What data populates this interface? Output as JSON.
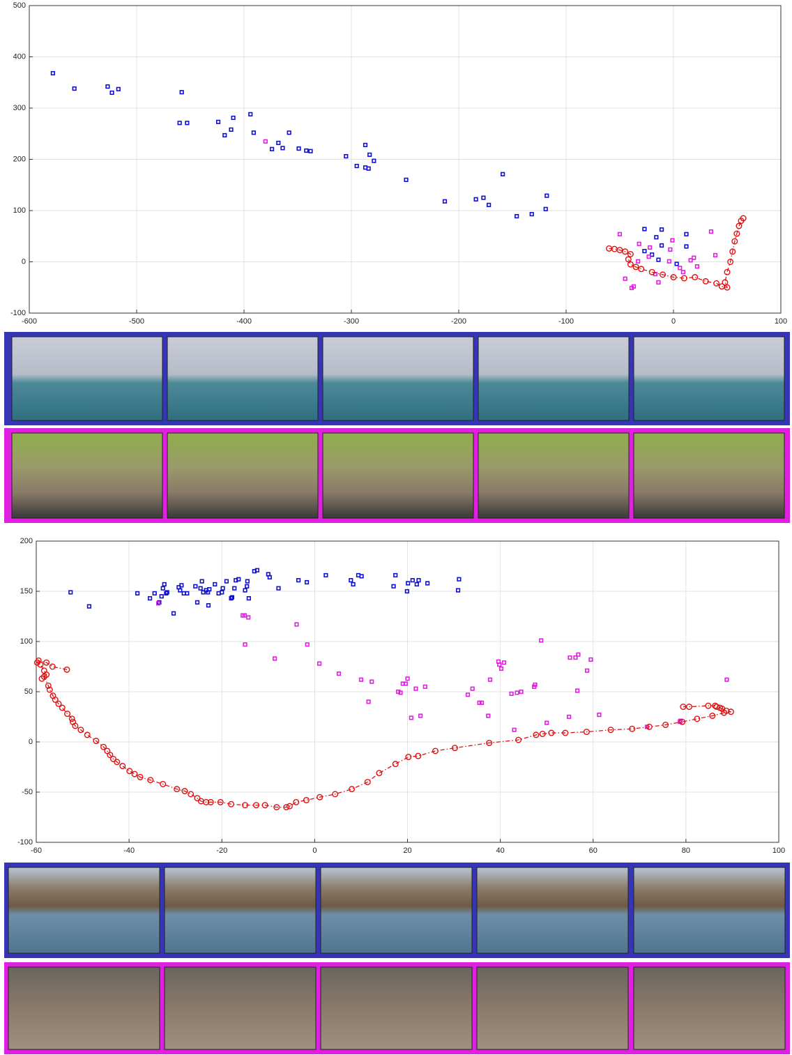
{
  "chart_data": [
    {
      "type": "scatter",
      "grid": true,
      "xlim": [
        -600,
        100
      ],
      "ylim": [
        -100,
        500
      ],
      "xticks": [
        -600,
        -500,
        -400,
        -300,
        -200,
        -100,
        0,
        100
      ],
      "yticks": [
        -100,
        0,
        100,
        200,
        300,
        400,
        500
      ],
      "series": [
        {
          "color": "#1010d0",
          "marker": "square",
          "x": [
            -578,
            -558,
            -527,
            -523,
            -517,
            -458,
            -460,
            -453,
            -424,
            -410,
            -412,
            -418,
            -394,
            -391,
            -374,
            -368,
            -364,
            -358,
            -349,
            -342,
            -338,
            -305,
            -295,
            -287,
            -283,
            -287,
            -284,
            -279,
            -249,
            -213,
            -184,
            -177,
            -172,
            -159,
            -146,
            -132,
            -119,
            -118,
            -27,
            -11,
            -16,
            -11,
            -27,
            -20,
            12,
            12,
            -14,
            3
          ],
          "values": [
            368,
            338,
            342,
            330,
            337,
            331,
            271,
            271,
            273,
            281,
            258,
            247,
            288,
            252,
            220,
            232,
            222,
            252,
            221,
            217,
            216,
            206,
            187,
            228,
            209,
            184,
            182,
            197,
            160,
            118,
            122,
            125,
            111,
            171,
            89,
            93,
            103,
            129,
            64,
            63,
            48,
            32,
            21,
            14,
            54,
            30,
            4,
            -4
          ]
        },
        {
          "color": "#e020e0",
          "marker": "square",
          "x": [
            -380,
            -50,
            -32,
            -22,
            -1,
            -3,
            35,
            39,
            -45,
            -39,
            -37,
            -14,
            -17,
            6,
            16,
            19,
            9,
            -4,
            22,
            -33,
            -23
          ],
          "values": [
            235,
            54,
            35,
            28,
            42,
            24,
            59,
            13,
            -33,
            -51,
            -48,
            -40,
            -24,
            -12,
            3,
            8,
            -20,
            1,
            -9,
            1,
            10
          ]
        },
        {
          "color": "#e01010",
          "marker": "circle",
          "line": "dashdot",
          "x": [
            -60,
            -55,
            -50,
            -45,
            -40,
            -42,
            -40,
            -35,
            -30,
            -20,
            -10,
            0,
            10,
            20,
            30,
            40,
            45,
            50,
            48,
            50,
            53,
            55,
            57,
            59,
            61,
            63,
            65
          ],
          "values": [
            26,
            25,
            23,
            20,
            15,
            5,
            -5,
            -10,
            -14,
            -20,
            -25,
            -30,
            -32,
            -30,
            -38,
            -42,
            -48,
            -50,
            -40,
            -20,
            0,
            20,
            40,
            55,
            70,
            80,
            85
          ]
        }
      ]
    },
    {
      "type": "scatter",
      "grid": true,
      "xlim": [
        -60,
        100
      ],
      "ylim": [
        -100,
        200
      ],
      "xticks": [
        -60,
        -40,
        -20,
        0,
        20,
        40,
        60,
        80,
        100
      ],
      "yticks": [
        -100,
        -50,
        0,
        50,
        100,
        150,
        200
      ],
      "series": [
        {
          "color": "#1010d0",
          "marker": "square",
          "x": [
            -52.6,
            -48.6,
            -38.2,
            -35.5,
            -34.5,
            -33.5,
            -33,
            -32.7,
            -32.4,
            -32,
            -31.8,
            -30.4,
            -29.3,
            -29,
            -28.7,
            -28.2,
            -27.5,
            -25.7,
            -25.3,
            -24.6,
            -24.3,
            -24,
            -23.4,
            -23,
            -22.9,
            -22.7,
            -21.5,
            -20.7,
            -20,
            -19.8,
            -19,
            -18,
            -17.8,
            -17.3,
            -17,
            -16.4,
            -15,
            -14.6,
            -14.5,
            -14.2,
            -13,
            -12.4,
            -10,
            -9.7,
            -7.8,
            -3.5,
            -1.7,
            2.4,
            7.8,
            8.3,
            9.4,
            10.1,
            17,
            17.4,
            19.9,
            20.1,
            21.1,
            22,
            22.4,
            24.3,
            30.9,
            31.1
          ],
          "values": [
            149,
            135,
            148,
            143,
            148,
            139,
            145,
            153,
            157,
            148,
            149,
            128,
            154,
            151,
            156,
            148,
            148,
            155,
            139,
            153,
            160,
            149,
            151,
            149,
            136,
            152,
            157,
            148,
            149,
            153,
            160,
            143,
            144,
            153,
            161,
            162,
            151,
            155,
            160,
            143,
            170,
            171,
            167,
            164,
            153,
            161,
            159,
            166,
            161,
            157,
            166,
            165,
            155,
            166,
            150,
            158,
            161,
            157,
            161,
            158,
            151,
            162
          ]
        },
        {
          "color": "#e020e0",
          "marker": "square",
          "x": [
            -33.7,
            -15.5,
            -15.1,
            -15,
            -14.3,
            -8.6,
            -3.9,
            -1.6,
            1,
            5.2,
            10,
            11.6,
            12.3,
            18,
            18.5,
            19,
            19.6,
            20,
            20.8,
            21.8,
            22.8,
            23.8,
            33,
            34,
            35.5,
            36,
            37.4,
            37.8,
            39.6,
            39.8,
            40.2,
            40.8,
            42.4,
            43,
            43.6,
            44.5,
            47.5,
            47.3,
            48.8,
            50,
            54.8,
            55,
            56.2,
            56.6,
            56.8,
            58.7,
            59.5,
            61.3,
            71.6,
            78.7,
            78.8,
            88.8
          ],
          "values": [
            138,
            126,
            126,
            97,
            124,
            83,
            117,
            97,
            78,
            68,
            62,
            40,
            60,
            50,
            49,
            58,
            58,
            63,
            24,
            53,
            26,
            55,
            47,
            53,
            39,
            39,
            26,
            62,
            80,
            77,
            73,
            79,
            48,
            12,
            49,
            50,
            57,
            55,
            101,
            19,
            25,
            84,
            84,
            51,
            87,
            71,
            82,
            27,
            15,
            20,
            21,
            62
          ]
        },
        {
          "color": "#e01010",
          "marker": "circle",
          "line": "dashdot",
          "x": [
            -53.4,
            -56.5,
            -57.8,
            -59.5,
            -59.8,
            -59.1,
            -58.3,
            -57.8,
            -58.8,
            -58.3,
            -57.4,
            -57.1,
            -56.4,
            -55.9,
            -55.2,
            -54.4,
            -53.3,
            -52.3,
            -52.1,
            -51.6,
            -50.4,
            -49,
            -47.1,
            -45.5,
            -44.7,
            -44.1,
            -43.4,
            -42.6,
            -41.4,
            -39.9,
            -38.8,
            -37.6,
            -35.4,
            -32.7,
            -29.7,
            -28,
            -26.7,
            -25.3,
            -24.5,
            -23.4,
            -22.4,
            -20.3,
            -18,
            -15,
            -12.6,
            -10.7,
            -8.2,
            -6.1,
            -5.4,
            -4,
            -1.8,
            1.1,
            4.4,
            8,
            11.4,
            13.9,
            17.4,
            20.2,
            22.3,
            26,
            30.2,
            37.6,
            43.9,
            47.7,
            49.1,
            51,
            54,
            58.6,
            63.8,
            68.4,
            72.1,
            75.6,
            79.2,
            82.4,
            85.7,
            88.2,
            89.7,
            88.7,
            87.8,
            87.3,
            86.6,
            86.3,
            84.8,
            80.7,
            79.4
          ],
          "values": [
            72,
            75,
            79,
            81,
            79,
            77,
            71,
            67,
            63,
            65,
            56,
            52,
            46,
            42,
            38,
            34,
            28,
            23,
            20,
            16,
            12,
            7,
            1,
            -5,
            -9,
            -13,
            -17,
            -20,
            -24,
            -29,
            -32,
            -35,
            -38,
            -42,
            -47,
            -49,
            -52,
            -56,
            -59,
            -60,
            -60,
            -60,
            -62,
            -63,
            -63,
            -63,
            -65,
            -65,
            -64,
            -60,
            -58,
            -55,
            -52,
            -47,
            -40,
            -31,
            -22,
            -15,
            -14,
            -9,
            -6,
            -1,
            2,
            7,
            8,
            9,
            9,
            10,
            12,
            13,
            15,
            17,
            20,
            23,
            26,
            29,
            30,
            31,
            33,
            34,
            35,
            36,
            36,
            35,
            35
          ]
        }
      ]
    }
  ]
}
